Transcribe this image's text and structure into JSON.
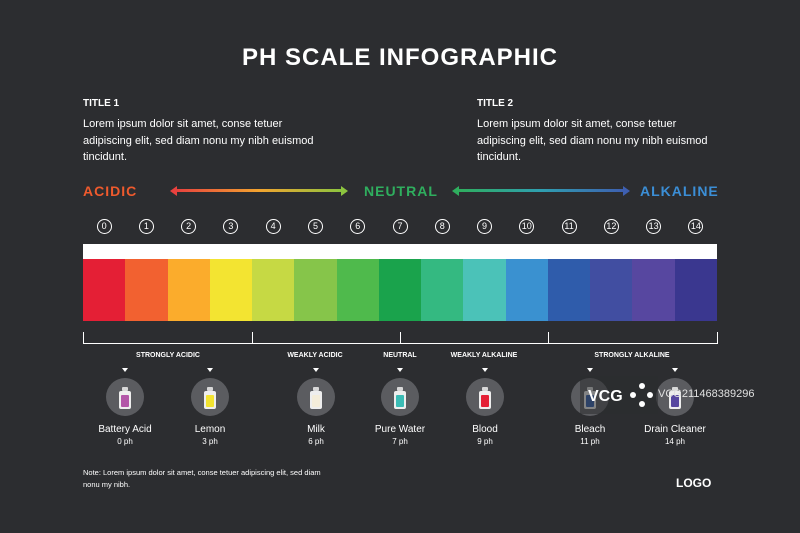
{
  "title": "PH SCALE INFOGRAPHIC",
  "sections": [
    {
      "heading": "TITLE 1",
      "text": "Lorem ipsum dolor sit amet, conse tetuer adipiscing elit, sed diam nonu my nibh euismod tincidunt."
    },
    {
      "heading": "TITLE 2",
      "text": "Lorem ipsum dolor sit amet, conse tetuer adipiscing elit, sed diam nonu my nibh euismod tincidunt."
    }
  ],
  "scale_labels": {
    "acidic": {
      "text": "ACIDIC",
      "color": "#ef5a2d"
    },
    "neutral": {
      "text": "NEUTRAL",
      "color": "#2fae5e"
    },
    "alkaline": {
      "text": "ALKALINE",
      "color": "#3b8ed6"
    }
  },
  "scale_numbers": [
    "0",
    "1",
    "2",
    "3",
    "4",
    "5",
    "6",
    "7",
    "8",
    "9",
    "10",
    "11",
    "12",
    "13",
    "14"
  ],
  "scale_colors": [
    "#e41f35",
    "#f26130",
    "#fbac2c",
    "#f3e431",
    "#c6d944",
    "#86c54a",
    "#4fba4c",
    "#1aa34c",
    "#34b981",
    "#4bc2b8",
    "#3a91d0",
    "#2f5cab",
    "#414ea1",
    "#5747a0",
    "#3a378f"
  ],
  "groups": [
    {
      "label": "STRONGLY ACIDIC"
    },
    {
      "label": "WEAKLY ACIDIC"
    },
    {
      "label": "NEUTRAL"
    },
    {
      "label": "WEAKLY ALKALINE"
    },
    {
      "label": "STRONGLY ALKALINE"
    }
  ],
  "items": [
    {
      "name": "Battery Acid",
      "ph": "0 ph",
      "color": "#b356a8"
    },
    {
      "name": "Lemon",
      "ph": "3 ph",
      "color": "#f3e431"
    },
    {
      "name": "Milk",
      "ph": "6 ph",
      "color": "#f4edda"
    },
    {
      "name": "Pure Water",
      "ph": "7 ph",
      "color": "#3bbcb5"
    },
    {
      "name": "Blood",
      "ph": "9 ph",
      "color": "#e41f35"
    },
    {
      "name": "Bleach",
      "ph": "11 ph",
      "color": "#2f5cab"
    },
    {
      "name": "Drain Cleaner",
      "ph": "14 ph",
      "color": "#5747a0"
    }
  ],
  "note": "Note: Lorem ipsum dolor sit amet, conse tetuer adipiscing elit, sed diam nonu my nibh.",
  "logo": "LOGO",
  "watermark": {
    "brand": "VCG",
    "id": "VCG211468389296"
  }
}
